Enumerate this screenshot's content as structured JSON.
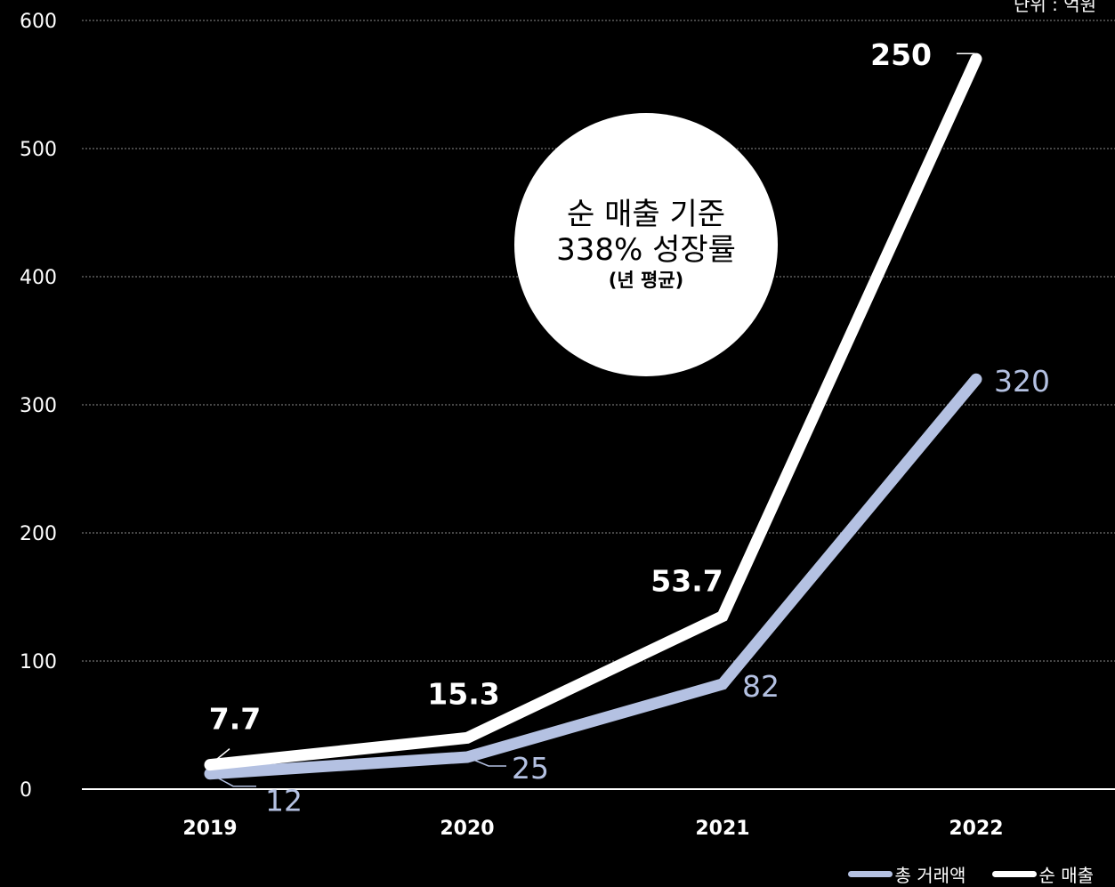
{
  "chart_data": {
    "type": "line",
    "unit_label": "단위 : 억원",
    "categories": [
      "2019",
      "2020",
      "2021",
      "2022"
    ],
    "ylim": [
      0,
      600
    ],
    "yticks": [
      0,
      100,
      200,
      300,
      400,
      500,
      600
    ],
    "grid": true,
    "legend_position": "bottom-right",
    "series": [
      {
        "name": "총 거래액",
        "color": "#b4c1e2",
        "values": [
          12,
          25,
          82,
          320
        ],
        "labels": [
          "12",
          "25",
          "82",
          "320"
        ]
      },
      {
        "name": "순 매출",
        "color": "#ffffff",
        "values": [
          19,
          40,
          135,
          570
        ],
        "labels": [
          "7.7",
          "15.3",
          "53.7",
          "250"
        ]
      }
    ],
    "annotation": {
      "line1": "순 매출 기준",
      "line2": "338% 성장률",
      "line3": "(년 평균)"
    }
  }
}
